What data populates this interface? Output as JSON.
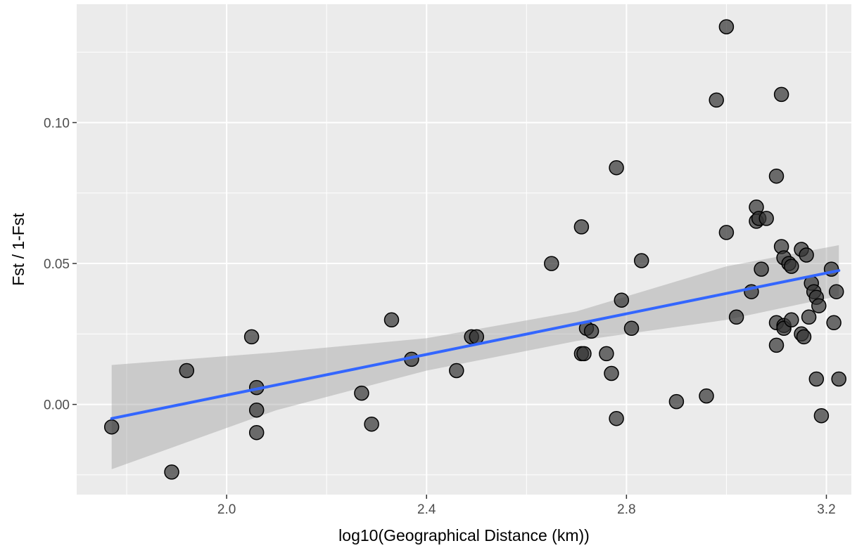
{
  "chart_data": {
    "type": "scatter",
    "title": "",
    "xlabel": "log10(Geographical Distance (km))",
    "ylabel": "Fst / 1-Fst",
    "xlim": [
      1.7,
      3.25
    ],
    "ylim": [
      -0.032,
      0.142
    ],
    "x_ticks": [
      2.0,
      2.4,
      2.8,
      3.2
    ],
    "x_tick_labels": [
      "2.0",
      "2.4",
      "2.8",
      "3.2"
    ],
    "y_ticks": [
      0.0,
      0.05,
      0.1
    ],
    "y_tick_labels": [
      "0.00",
      "0.05",
      "0.10"
    ],
    "x_minor_ticks": [
      1.8,
      2.2,
      2.6,
      3.0
    ],
    "y_minor_ticks": [
      -0.025,
      0.025,
      0.075,
      0.125
    ],
    "grid": true,
    "legend": "none",
    "colors": {
      "panel_background": "#ebebeb",
      "grid_line": "#ffffff",
      "point_fill": "#333333",
      "point_stroke": "#000000",
      "regression_line": "#3366ff",
      "confidence_band": "#999999"
    },
    "points": [
      {
        "x": 1.77,
        "y": -0.008
      },
      {
        "x": 1.89,
        "y": -0.024
      },
      {
        "x": 1.92,
        "y": 0.012
      },
      {
        "x": 2.05,
        "y": 0.024
      },
      {
        "x": 2.06,
        "y": 0.006
      },
      {
        "x": 2.06,
        "y": -0.002
      },
      {
        "x": 2.06,
        "y": -0.01
      },
      {
        "x": 2.27,
        "y": 0.004
      },
      {
        "x": 2.29,
        "y": -0.007
      },
      {
        "x": 2.33,
        "y": 0.03
      },
      {
        "x": 2.37,
        "y": 0.016
      },
      {
        "x": 2.46,
        "y": 0.012
      },
      {
        "x": 2.49,
        "y": 0.024
      },
      {
        "x": 2.5,
        "y": 0.024
      },
      {
        "x": 2.65,
        "y": 0.05
      },
      {
        "x": 2.71,
        "y": 0.018
      },
      {
        "x": 2.71,
        "y": 0.063
      },
      {
        "x": 2.715,
        "y": 0.018
      },
      {
        "x": 2.72,
        "y": 0.027
      },
      {
        "x": 2.73,
        "y": 0.026
      },
      {
        "x": 2.76,
        "y": 0.018
      },
      {
        "x": 2.77,
        "y": 0.011
      },
      {
        "x": 2.78,
        "y": 0.084
      },
      {
        "x": 2.78,
        "y": -0.005
      },
      {
        "x": 2.79,
        "y": 0.037
      },
      {
        "x": 2.81,
        "y": 0.027
      },
      {
        "x": 2.83,
        "y": 0.051
      },
      {
        "x": 2.9,
        "y": 0.001
      },
      {
        "x": 2.96,
        "y": 0.003
      },
      {
        "x": 2.98,
        "y": 0.108
      },
      {
        "x": 3.0,
        "y": 0.134
      },
      {
        "x": 3.0,
        "y": 0.061
      },
      {
        "x": 3.02,
        "y": 0.031
      },
      {
        "x": 3.05,
        "y": 0.04
      },
      {
        "x": 3.06,
        "y": 0.07
      },
      {
        "x": 3.06,
        "y": 0.065
      },
      {
        "x": 3.065,
        "y": 0.066
      },
      {
        "x": 3.07,
        "y": 0.048
      },
      {
        "x": 3.08,
        "y": 0.066
      },
      {
        "x": 3.1,
        "y": 0.081
      },
      {
        "x": 3.1,
        "y": 0.029
      },
      {
        "x": 3.1,
        "y": 0.021
      },
      {
        "x": 3.11,
        "y": 0.11
      },
      {
        "x": 3.11,
        "y": 0.056
      },
      {
        "x": 3.115,
        "y": 0.052
      },
      {
        "x": 3.115,
        "y": 0.028
      },
      {
        "x": 3.115,
        "y": 0.027
      },
      {
        "x": 3.125,
        "y": 0.05
      },
      {
        "x": 3.13,
        "y": 0.049
      },
      {
        "x": 3.13,
        "y": 0.03
      },
      {
        "x": 3.15,
        "y": 0.055
      },
      {
        "x": 3.15,
        "y": 0.025
      },
      {
        "x": 3.155,
        "y": 0.024
      },
      {
        "x": 3.16,
        "y": 0.053
      },
      {
        "x": 3.165,
        "y": 0.031
      },
      {
        "x": 3.17,
        "y": 0.043
      },
      {
        "x": 3.175,
        "y": 0.04
      },
      {
        "x": 3.18,
        "y": 0.038
      },
      {
        "x": 3.18,
        "y": 0.009
      },
      {
        "x": 3.185,
        "y": 0.035
      },
      {
        "x": 3.19,
        "y": -0.004
      },
      {
        "x": 3.21,
        "y": 0.048
      },
      {
        "x": 3.215,
        "y": 0.029
      },
      {
        "x": 3.22,
        "y": 0.04
      },
      {
        "x": 3.225,
        "y": 0.009
      }
    ],
    "regression": {
      "x_start": 1.77,
      "y_start": -0.005,
      "x_end": 3.225,
      "y_end": 0.0475
    },
    "confidence_band": [
      {
        "x": 1.77,
        "lower": -0.023,
        "upper": 0.014
      },
      {
        "x": 2.1,
        "lower": -0.002,
        "upper": 0.0185
      },
      {
        "x": 2.4,
        "lower": 0.012,
        "upper": 0.0235
      },
      {
        "x": 2.7,
        "lower": 0.0225,
        "upper": 0.033
      },
      {
        "x": 3.0,
        "lower": 0.03,
        "upper": 0.049
      },
      {
        "x": 3.225,
        "lower": 0.0385,
        "upper": 0.0565
      }
    ]
  }
}
